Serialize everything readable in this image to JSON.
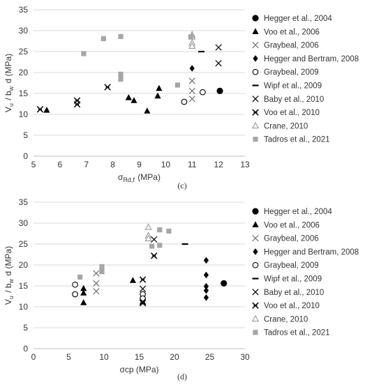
{
  "chart_data": [
    {
      "type": "scatter",
      "panel_label": "(c)",
      "ylabel": "V_u / b_w d (MPa)",
      "xlabel": "σ_Rd,f (MPa)",
      "xlim": [
        5,
        13
      ],
      "ylim": [
        0,
        35
      ],
      "xticks": [
        5,
        6,
        7,
        8,
        9,
        10,
        11,
        12,
        13
      ],
      "yticks": [
        0,
        5,
        10,
        15,
        20,
        25,
        30,
        35
      ],
      "grid": "horizontal",
      "legend_position": "right",
      "series": [
        {
          "name": "Hegger et al., 2004",
          "marker": "circle-filled",
          "points": [
            [
              12.05,
              15.6
            ]
          ]
        },
        {
          "name": "Voo et al., 2006",
          "marker": "triangle-filled",
          "points": [
            [
              5.5,
              11.0
            ],
            [
              8.6,
              14.0
            ],
            [
              8.8,
              13.3
            ],
            [
              9.3,
              10.8
            ],
            [
              9.7,
              14.4
            ],
            [
              9.75,
              16.2
            ]
          ]
        },
        {
          "name": "Graybeal, 2006",
          "marker": "x",
          "points": [
            [
              11.0,
              18.0
            ],
            [
              11.0,
              15.6
            ],
            [
              11.0,
              13.7
            ]
          ]
        },
        {
          "name": "Hegger and Bertram, 2008",
          "marker": "diamond-filled",
          "points": [
            [
              11.0,
              21.0
            ]
          ]
        },
        {
          "name": "Graybeal, 2009",
          "marker": "circle-open",
          "points": [
            [
              10.7,
              13.0
            ],
            [
              11.4,
              15.3
            ]
          ]
        },
        {
          "name": "Wipf et al., 2009",
          "marker": "dash",
          "points": [
            [
              11.35,
              25.0
            ]
          ]
        },
        {
          "name": "Baby et al., 2010",
          "marker": "x-dark",
          "points": [
            [
              12.0,
              26.0
            ],
            [
              12.0,
              22.2
            ]
          ]
        },
        {
          "name": "Voo et al., 2010",
          "marker": "star",
          "points": [
            [
              5.25,
              11.2
            ],
            [
              6.65,
              13.3
            ],
            [
              6.65,
              12.4
            ],
            [
              7.8,
              16.5
            ]
          ]
        },
        {
          "name": "Crane, 2010",
          "marker": "triangle-open",
          "points": [
            [
              11.0,
              29.0
            ],
            [
              11.0,
              28.5
            ],
            [
              11.0,
              27.0
            ],
            [
              11.0,
              26.3
            ]
          ]
        },
        {
          "name": "Tadros et al., 2021",
          "marker": "square-gray",
          "points": [
            [
              6.9,
              24.5
            ],
            [
              7.65,
              28.1
            ],
            [
              8.3,
              28.6
            ],
            [
              8.3,
              19.6
            ],
            [
              8.3,
              18.4
            ],
            [
              10.45,
              17.0
            ],
            [
              10.95,
              28.5
            ]
          ]
        }
      ]
    },
    {
      "type": "scatter",
      "panel_label": "(d)",
      "ylabel": "V_u / b_w d (MPa)",
      "xlabel": "σcp (MPa)",
      "xlim": [
        0,
        30
      ],
      "ylim": [
        0,
        35
      ],
      "xticks": [
        0,
        5,
        10,
        15,
        20,
        25,
        30
      ],
      "yticks": [
        0,
        5,
        10,
        15,
        20,
        25,
        30,
        35
      ],
      "grid": "horizontal",
      "legend_position": "right",
      "series": [
        {
          "name": "Hegger et al., 2004",
          "marker": "circle-filled",
          "points": [
            [
              27.0,
              15.6
            ]
          ]
        },
        {
          "name": "Voo et al., 2006",
          "marker": "triangle-filled",
          "points": [
            [
              7.1,
              14.4
            ],
            [
              7.1,
              13.3
            ],
            [
              7.1,
              11.0
            ],
            [
              14.1,
              16.3
            ],
            [
              15.5,
              11.2
            ]
          ]
        },
        {
          "name": "Graybeal, 2006",
          "marker": "x",
          "points": [
            [
              8.9,
              18.0
            ],
            [
              8.9,
              15.6
            ],
            [
              8.9,
              13.7
            ]
          ]
        },
        {
          "name": "Hegger and Bertram, 2008",
          "marker": "diamond-filled",
          "points": [
            [
              24.5,
              21.1
            ],
            [
              24.5,
              17.6
            ],
            [
              24.5,
              14.9
            ],
            [
              24.5,
              13.9
            ],
            [
              24.5,
              12.2
            ]
          ]
        },
        {
          "name": "Graybeal, 2009",
          "marker": "circle-open",
          "points": [
            [
              5.9,
              15.3
            ],
            [
              5.9,
              13.0
            ],
            [
              15.5,
              13.0
            ],
            [
              15.5,
              12.0
            ]
          ]
        },
        {
          "name": "Wipf et al., 2009",
          "marker": "dash",
          "points": [
            [
              21.5,
              25.0
            ]
          ]
        },
        {
          "name": "Baby et al., 2010",
          "marker": "x-dark",
          "points": [
            [
              17.1,
              26.1
            ],
            [
              15.5,
              14.3
            ]
          ]
        },
        {
          "name": "Voo et al., 2010",
          "marker": "star",
          "points": [
            [
              15.5,
              16.5
            ],
            [
              15.5,
              11.2
            ],
            [
              15.5,
              10.9
            ],
            [
              17.1,
              22.2
            ]
          ]
        },
        {
          "name": "Crane, 2010",
          "marker": "triangle-open",
          "points": [
            [
              16.3,
              29.0
            ],
            [
              16.3,
              27.0
            ],
            [
              16.3,
              26.3
            ]
          ]
        },
        {
          "name": "Tadros et al., 2021",
          "marker": "square-gray",
          "points": [
            [
              6.6,
              17.1
            ],
            [
              9.7,
              19.6
            ],
            [
              9.7,
              18.4
            ],
            [
              16.8,
              24.5
            ],
            [
              17.9,
              28.4
            ],
            [
              17.9,
              24.7
            ],
            [
              19.2,
              28.1
            ]
          ]
        }
      ]
    }
  ]
}
